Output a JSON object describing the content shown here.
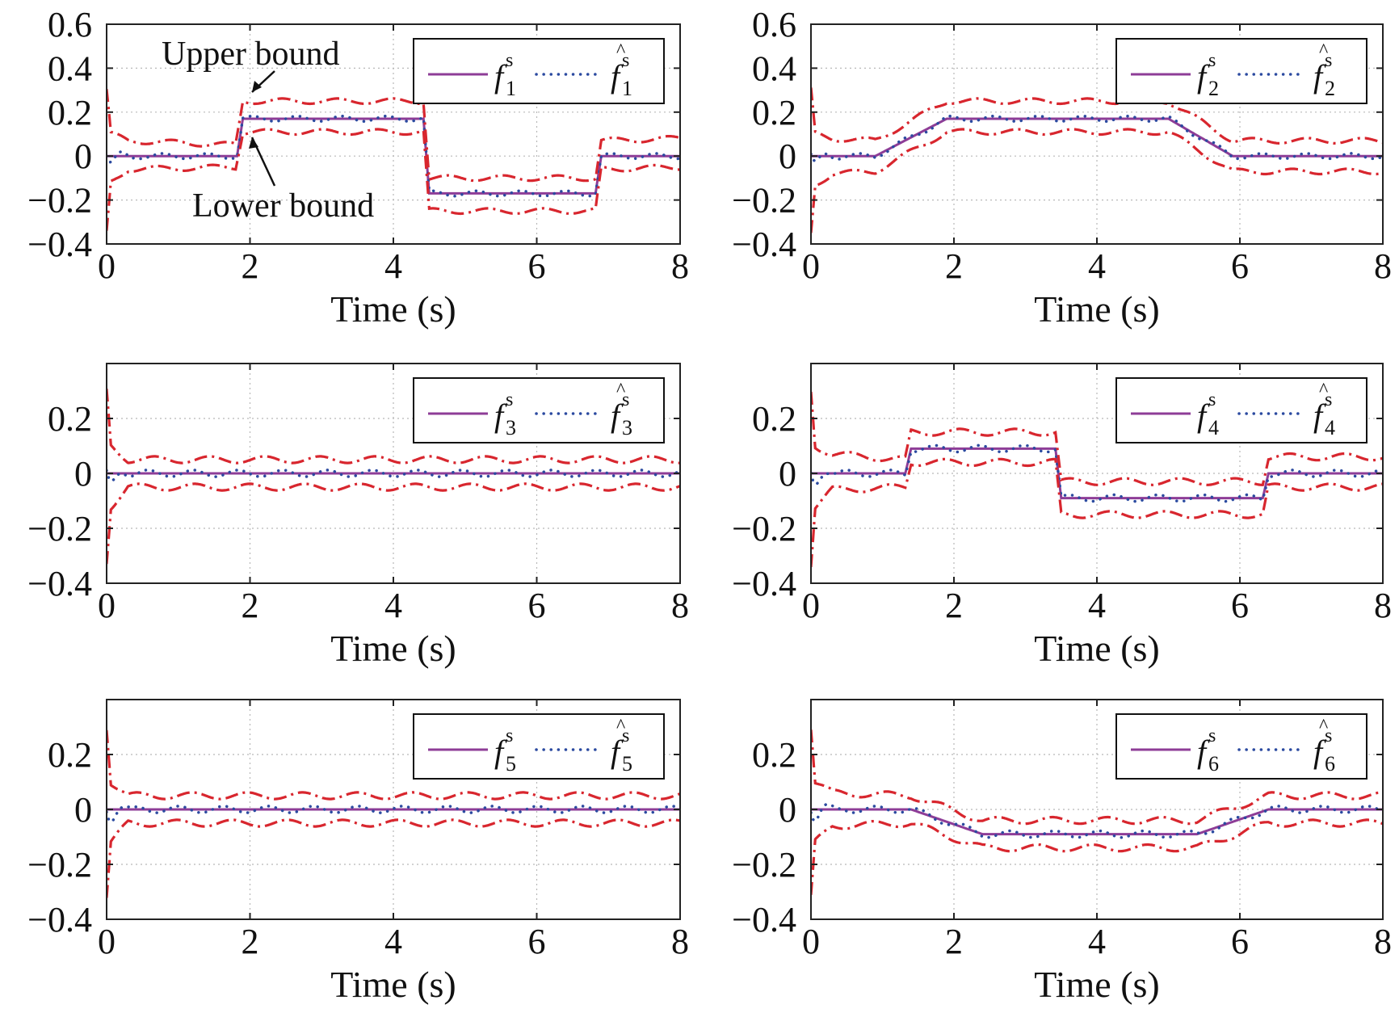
{
  "chart_data": [
    {
      "type": "line",
      "xlabel": "Time (s)",
      "xlim": [
        0,
        8
      ],
      "ylim": [
        -0.4,
        0.6
      ],
      "xticks": [
        "0",
        "2",
        "4",
        "6",
        "8"
      ],
      "yticks": [
        "0.6",
        "0.4",
        "0.2",
        "0",
        "−0.2",
        "−0.4"
      ],
      "ytick_values": [
        0.6,
        0.4,
        0.2,
        0,
        -0.2,
        -0.4
      ],
      "grid": true,
      "legend": {
        "placement": "top-right",
        "true_name": "f",
        "est_name": "f",
        "sub": "1",
        "sup": "s",
        "hat": "^"
      },
      "annotations": {
        "upper": "Upper bound",
        "lower": "Lower bound"
      },
      "series": [
        {
          "role": "true",
          "x": [
            0,
            1.82,
            1.9,
            4.42,
            4.5,
            6.82,
            6.9,
            8
          ],
          "y": [
            0,
            0,
            0.17,
            0.17,
            -0.17,
            -0.17,
            0,
            0
          ]
        },
        {
          "role": "upper",
          "x": [
            0,
            0.06,
            0.3,
            1.8,
            1.9,
            4.42,
            4.5,
            6.82,
            6.9,
            8
          ],
          "y": [
            0.3,
            0.1,
            0.07,
            0.05,
            0.25,
            0.25,
            -0.1,
            -0.1,
            0.07,
            0.08
          ]
        },
        {
          "role": "lower",
          "x": [
            0,
            0.06,
            0.3,
            1.8,
            1.9,
            4.42,
            4.5,
            6.82,
            6.9,
            8
          ],
          "y": [
            -0.35,
            -0.12,
            -0.06,
            -0.05,
            0.11,
            0.11,
            -0.25,
            -0.25,
            -0.06,
            -0.05
          ]
        }
      ]
    },
    {
      "type": "line",
      "xlabel": "Time (s)",
      "xlim": [
        0,
        8
      ],
      "ylim": [
        -0.4,
        0.6
      ],
      "xticks": [
        "0",
        "2",
        "4",
        "6",
        "8"
      ],
      "yticks": [
        "0.6",
        "0.4",
        "0.2",
        "0",
        "−0.2",
        "−0.4"
      ],
      "ytick_values": [
        0.6,
        0.4,
        0.2,
        0,
        -0.2,
        -0.4
      ],
      "grid": true,
      "legend": {
        "placement": "top-right",
        "true_name": "f",
        "est_name": "f",
        "sub": "2",
        "sup": "s",
        "hat": "^"
      },
      "series": [
        {
          "role": "true",
          "x": [
            0,
            0.9,
            1.9,
            5.0,
            5.9,
            8
          ],
          "y": [
            0,
            0,
            0.17,
            0.17,
            0,
            0
          ]
        },
        {
          "role": "upper",
          "x": [
            0,
            0.06,
            0.3,
            0.9,
            1.9,
            5.0,
            5.9,
            8
          ],
          "y": [
            0.3,
            0.1,
            0.08,
            0.07,
            0.25,
            0.25,
            0.07,
            0.07
          ]
        },
        {
          "role": "lower",
          "x": [
            0,
            0.06,
            0.3,
            0.9,
            1.9,
            5.0,
            5.9,
            8
          ],
          "y": [
            -0.35,
            -0.13,
            -0.08,
            -0.07,
            0.11,
            0.11,
            -0.07,
            -0.07
          ]
        }
      ]
    },
    {
      "type": "line",
      "xlabel": "Time (s)",
      "xlim": [
        0,
        8
      ],
      "ylim": [
        -0.4,
        0.4
      ],
      "xticks": [
        "0",
        "2",
        "4",
        "6",
        "8"
      ],
      "yticks": [
        "0.2",
        "0",
        "−0.2",
        "−0.4"
      ],
      "ytick_values": [
        0.2,
        0,
        -0.2,
        -0.4
      ],
      "grid": true,
      "legend": {
        "placement": "top-right",
        "true_name": "f",
        "est_name": "f",
        "sub": "3",
        "sup": "s",
        "hat": "^"
      },
      "series": [
        {
          "role": "true",
          "x": [
            0,
            8
          ],
          "y": [
            0,
            0
          ]
        },
        {
          "role": "upper",
          "x": [
            0,
            0.06,
            0.3,
            8
          ],
          "y": [
            0.3,
            0.1,
            0.05,
            0.05
          ]
        },
        {
          "role": "lower",
          "x": [
            0,
            0.06,
            0.3,
            8
          ],
          "y": [
            -0.32,
            -0.12,
            -0.05,
            -0.05
          ]
        }
      ]
    },
    {
      "type": "line",
      "xlabel": "Time (s)",
      "xlim": [
        0,
        8
      ],
      "ylim": [
        -0.4,
        0.4
      ],
      "xticks": [
        "0",
        "2",
        "4",
        "6",
        "8"
      ],
      "yticks": [
        "0.2",
        "0",
        "−0.2",
        "−0.4"
      ],
      "ytick_values": [
        0.2,
        0,
        -0.2,
        -0.4
      ],
      "grid": true,
      "legend": {
        "placement": "top-right",
        "true_name": "f",
        "est_name": "f",
        "sub": "4",
        "sup": "s",
        "hat": "^"
      },
      "series": [
        {
          "role": "true",
          "x": [
            0,
            1.32,
            1.4,
            3.42,
            3.5,
            6.32,
            6.4,
            8
          ],
          "y": [
            0,
            0,
            0.09,
            0.09,
            -0.09,
            -0.09,
            0,
            0
          ]
        },
        {
          "role": "upper",
          "x": [
            0,
            0.06,
            0.3,
            1.32,
            1.4,
            3.42,
            3.5,
            6.32,
            6.4,
            8
          ],
          "y": [
            0.3,
            0.1,
            0.07,
            0.05,
            0.15,
            0.15,
            -0.03,
            -0.03,
            0.06,
            0.06
          ]
        },
        {
          "role": "lower",
          "x": [
            0,
            0.06,
            0.3,
            1.32,
            1.4,
            3.42,
            3.5,
            6.32,
            6.4,
            8
          ],
          "y": [
            -0.33,
            -0.12,
            -0.06,
            -0.05,
            0.04,
            0.04,
            -0.15,
            -0.15,
            -0.05,
            -0.05
          ]
        }
      ]
    },
    {
      "type": "line",
      "xlabel": "Time (s)",
      "xlim": [
        0,
        8
      ],
      "ylim": [
        -0.4,
        0.4
      ],
      "xticks": [
        "0",
        "2",
        "4",
        "6",
        "8"
      ],
      "yticks": [
        "0.2",
        "0",
        "−0.2",
        "−0.4"
      ],
      "ytick_values": [
        0.2,
        0,
        -0.2,
        -0.4
      ],
      "grid": true,
      "legend": {
        "placement": "top-right",
        "true_name": "f",
        "est_name": "f",
        "sub": "5",
        "sup": "s",
        "hat": "^"
      },
      "series": [
        {
          "role": "true",
          "x": [
            0,
            8
          ],
          "y": [
            0,
            0
          ]
        },
        {
          "role": "upper",
          "x": [
            0,
            0.06,
            0.3,
            8
          ],
          "y": [
            0.3,
            0.1,
            0.05,
            0.05
          ]
        },
        {
          "role": "lower",
          "x": [
            0,
            0.06,
            0.3,
            8
          ],
          "y": [
            -0.32,
            -0.12,
            -0.05,
            -0.05
          ]
        }
      ]
    },
    {
      "type": "line",
      "xlabel": "Time (s)",
      "xlim": [
        0,
        8
      ],
      "ylim": [
        -0.4,
        0.4
      ],
      "xticks": [
        "0",
        "2",
        "4",
        "6",
        "8"
      ],
      "yticks": [
        "0.2",
        "0",
        "−0.2",
        "−0.4"
      ],
      "ytick_values": [
        0.2,
        0,
        -0.2,
        -0.4
      ],
      "grid": true,
      "legend": {
        "placement": "top-right",
        "true_name": "f",
        "est_name": "f",
        "sub": "6",
        "sup": "s",
        "hat": "^"
      },
      "series": [
        {
          "role": "true",
          "x": [
            0,
            1.4,
            2.4,
            5.4,
            6.4,
            8
          ],
          "y": [
            0,
            0,
            -0.09,
            -0.09,
            0,
            0
          ]
        },
        {
          "role": "upper",
          "x": [
            0,
            0.06,
            0.3,
            1.4,
            2.4,
            5.4,
            6.4,
            8
          ],
          "y": [
            0.3,
            0.1,
            0.06,
            0.05,
            -0.04,
            -0.04,
            0.05,
            0.05
          ]
        },
        {
          "role": "lower",
          "x": [
            0,
            0.06,
            0.3,
            1.4,
            2.4,
            5.4,
            6.4,
            8
          ],
          "y": [
            -0.32,
            -0.12,
            -0.06,
            -0.05,
            -0.14,
            -0.14,
            -0.05,
            -0.05
          ]
        }
      ]
    }
  ]
}
